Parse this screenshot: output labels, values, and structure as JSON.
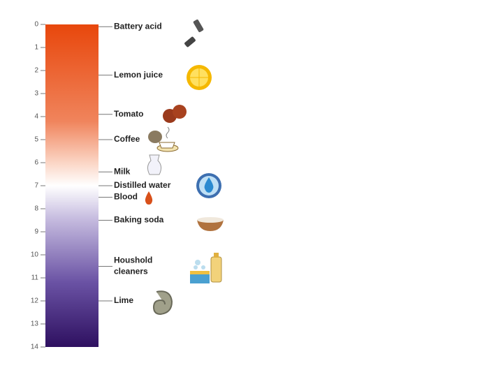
{
  "scale": {
    "range": [
      0,
      14
    ],
    "ticks": [
      0,
      1,
      2,
      3,
      4,
      5,
      6,
      7,
      8,
      9,
      10,
      11,
      12,
      13,
      14
    ]
  },
  "items": [
    {
      "lines": [
        "Battery acid"
      ],
      "ph": 0.1
    },
    {
      "lines": [
        "Lemon juice"
      ],
      "ph": 2.2
    },
    {
      "lines": [
        "Tomato"
      ],
      "ph": 3.9
    },
    {
      "lines": [
        "Coffee"
      ],
      "ph": 5.0
    },
    {
      "lines": [
        "Milk"
      ],
      "ph": 6.4
    },
    {
      "lines": [
        "Distilled water"
      ],
      "ph": 7.0
    },
    {
      "lines": [
        "Blood"
      ],
      "ph": 7.5
    },
    {
      "lines": [
        "Baking soda"
      ],
      "ph": 8.5
    },
    {
      "lines": [
        "Houshold",
        "cleaners"
      ],
      "ph": 10.5
    },
    {
      "lines": [
        "Lime"
      ],
      "ph": 12.0
    }
  ]
}
